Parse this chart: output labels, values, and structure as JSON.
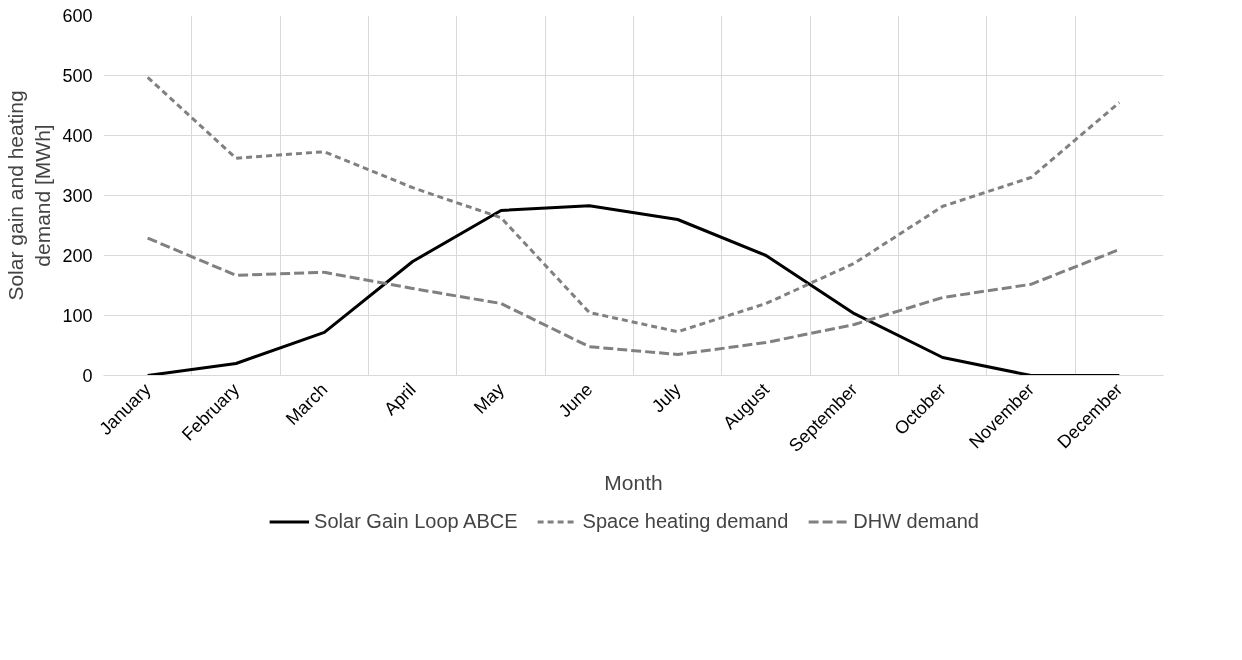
{
  "chart_data": {
    "type": "line",
    "xlabel": "Month",
    "ylabel": "Solar gain and heating demand [MWh]",
    "categories": [
      "January",
      "February",
      "March",
      "April",
      "May",
      "June",
      "July",
      "August",
      "September",
      "October",
      "November",
      "December"
    ],
    "series": [
      {
        "name": "Solar Gain Loop ABCE",
        "color": "#000000",
        "line_style": "solid",
        "values": [
          0,
          20,
          72,
          190,
          275,
          283,
          260,
          200,
          103,
          30,
          0,
          0
        ]
      },
      {
        "name": "Space heating demand",
        "color": "#808080",
        "line_style": "dashed",
        "values": [
          497,
          362,
          373,
          313,
          263,
          105,
          73,
          120,
          187,
          282,
          330,
          455
        ]
      },
      {
        "name": "DHW demand",
        "color": "#808080",
        "line_style": "dashed",
        "values": [
          229,
          167,
          172,
          145,
          120,
          48,
          35,
          55,
          85,
          130,
          152,
          210
        ]
      }
    ],
    "ylim": [
      0,
      600
    ],
    "yticks": [
      0,
      100,
      200,
      300,
      400,
      500,
      600
    ],
    "grid": true,
    "legend": "bottom",
    "marker": "none"
  }
}
